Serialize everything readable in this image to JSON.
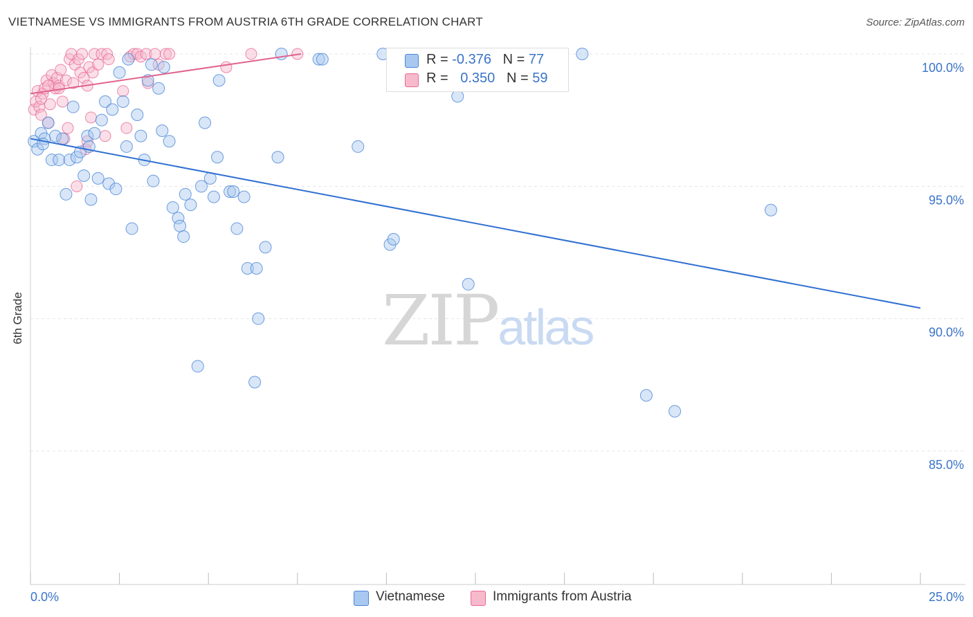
{
  "title": "VIETNAMESE VS IMMIGRANTS FROM AUSTRIA 6TH GRADE CORRELATION CHART",
  "source": "Source: ZipAtlas.com",
  "watermark": {
    "zip": "ZIP",
    "atlas": "atlas"
  },
  "colors": {
    "blue_fill": "#a9c8f0",
    "blue_stroke": "#4a86d6",
    "blue_line": "#2f6fd1",
    "pink_fill": "#f7b9cc",
    "pink_stroke": "#e86b96",
    "pink_line": "#e0628d",
    "grid": "#e4e4e4",
    "axis_text": "#3a74c8"
  },
  "legend": {
    "r_label": "R =",
    "n_label": "N =",
    "blue": {
      "r": "-0.376",
      "n": "77"
    },
    "pink": {
      "r": "0.350",
      "n": "59"
    }
  },
  "bottom_legend": {
    "blue": "Vietnamese",
    "pink": "Immigrants from Austria"
  },
  "chart_data": {
    "type": "scatter",
    "title": "VIETNAMESE VS IMMIGRANTS FROM AUSTRIA 6TH GRADE CORRELATION CHART",
    "xlabel": "",
    "ylabel": "6th Grade",
    "xlim": [
      0.0,
      25.0
    ],
    "ylim": [
      80.0,
      100.5
    ],
    "x_tick_labels": [
      "0.0%",
      "25.0%"
    ],
    "y_ticks": [
      85.0,
      90.0,
      95.0,
      100.0
    ],
    "y_tick_labels": [
      "85.0%",
      "90.0%",
      "95.0%",
      "100.0%"
    ],
    "grid": true,
    "series": [
      {
        "name": "Vietnamese",
        "r": -0.376,
        "n": 77,
        "trend": {
          "x": [
            0.0,
            25.0
          ],
          "y": [
            96.8,
            90.4
          ]
        },
        "points": [
          [
            0.1,
            96.7
          ],
          [
            0.2,
            96.4
          ],
          [
            0.3,
            97.0
          ],
          [
            0.4,
            96.8
          ],
          [
            0.5,
            97.4
          ],
          [
            0.6,
            96.0
          ],
          [
            0.7,
            96.9
          ],
          [
            0.8,
            96.0
          ],
          [
            0.9,
            96.8
          ],
          [
            1.0,
            94.7
          ],
          [
            1.1,
            96.0
          ],
          [
            1.2,
            98.0
          ],
          [
            1.3,
            96.1
          ],
          [
            1.4,
            96.3
          ],
          [
            1.5,
            95.4
          ],
          [
            1.6,
            96.9
          ],
          [
            1.7,
            94.5
          ],
          [
            1.8,
            97.0
          ],
          [
            1.9,
            95.3
          ],
          [
            2.0,
            97.5
          ],
          [
            2.1,
            98.2
          ],
          [
            2.2,
            95.1
          ],
          [
            2.3,
            97.9
          ],
          [
            2.4,
            94.9
          ],
          [
            2.5,
            99.3
          ],
          [
            2.6,
            98.2
          ],
          [
            2.7,
            96.5
          ],
          [
            2.75,
            99.8
          ],
          [
            2.85,
            93.4
          ],
          [
            3.0,
            97.7
          ],
          [
            3.1,
            96.9
          ],
          [
            3.2,
            96.0
          ],
          [
            3.3,
            99.0
          ],
          [
            3.4,
            99.6
          ],
          [
            3.45,
            95.2
          ],
          [
            3.6,
            98.7
          ],
          [
            3.7,
            97.1
          ],
          [
            3.75,
            99.5
          ],
          [
            3.9,
            96.7
          ],
          [
            4.0,
            94.2
          ],
          [
            4.15,
            93.8
          ],
          [
            4.2,
            93.5
          ],
          [
            4.3,
            93.1
          ],
          [
            4.35,
            94.7
          ],
          [
            4.5,
            94.3
          ],
          [
            4.8,
            95.0
          ],
          [
            4.9,
            97.4
          ],
          [
            5.05,
            95.3
          ],
          [
            5.15,
            94.6
          ],
          [
            5.25,
            96.1
          ],
          [
            5.3,
            99.0
          ],
          [
            5.6,
            94.8
          ],
          [
            5.7,
            94.8
          ],
          [
            5.8,
            93.4
          ],
          [
            6.0,
            94.6
          ],
          [
            6.1,
            91.9
          ],
          [
            6.35,
            91.9
          ],
          [
            6.4,
            90.0
          ],
          [
            6.6,
            92.7
          ],
          [
            6.95,
            96.1
          ],
          [
            7.05,
            100.0
          ],
          [
            8.1,
            99.8
          ],
          [
            8.2,
            99.8
          ],
          [
            9.2,
            96.5
          ],
          [
            9.9,
            100.0
          ],
          [
            10.1,
            92.8
          ],
          [
            10.2,
            93.0
          ],
          [
            12.0,
            98.4
          ],
          [
            12.3,
            91.3
          ],
          [
            15.5,
            100.0
          ],
          [
            17.3,
            87.1
          ],
          [
            18.1,
            86.5
          ],
          [
            20.8,
            94.1
          ],
          [
            4.7,
            88.2
          ],
          [
            6.3,
            87.6
          ],
          [
            0.35,
            96.6
          ],
          [
            1.65,
            96.5
          ]
        ]
      },
      {
        "name": "Immigrants from Austria",
        "r": 0.35,
        "n": 59,
        "trend": {
          "x": [
            0.0,
            7.6
          ],
          "y": [
            98.5,
            100.0
          ]
        },
        "points": [
          [
            0.1,
            97.9
          ],
          [
            0.15,
            98.2
          ],
          [
            0.2,
            98.6
          ],
          [
            0.25,
            98.0
          ],
          [
            0.3,
            97.7
          ],
          [
            0.35,
            98.5
          ],
          [
            0.4,
            98.7
          ],
          [
            0.45,
            99.0
          ],
          [
            0.5,
            97.4
          ],
          [
            0.55,
            98.1
          ],
          [
            0.6,
            99.2
          ],
          [
            0.65,
            98.9
          ],
          [
            0.7,
            98.7
          ],
          [
            0.75,
            99.1
          ],
          [
            0.8,
            98.8
          ],
          [
            0.85,
            99.4
          ],
          [
            0.9,
            98.2
          ],
          [
            0.95,
            96.8
          ],
          [
            1.0,
            99.0
          ],
          [
            1.05,
            97.2
          ],
          [
            1.1,
            99.8
          ],
          [
            1.15,
            100.0
          ],
          [
            1.2,
            98.9
          ],
          [
            1.25,
            99.6
          ],
          [
            1.3,
            95.0
          ],
          [
            1.35,
            99.8
          ],
          [
            1.4,
            99.3
          ],
          [
            1.45,
            100.0
          ],
          [
            1.5,
            99.1
          ],
          [
            1.55,
            96.4
          ],
          [
            1.6,
            98.8
          ],
          [
            1.65,
            99.5
          ],
          [
            1.7,
            97.6
          ],
          [
            1.75,
            99.3
          ],
          [
            1.8,
            100.0
          ],
          [
            1.9,
            99.6
          ],
          [
            2.0,
            100.0
          ],
          [
            2.1,
            96.9
          ],
          [
            2.15,
            100.0
          ],
          [
            2.2,
            99.8
          ],
          [
            2.6,
            98.6
          ],
          [
            2.7,
            97.2
          ],
          [
            2.8,
            99.9
          ],
          [
            2.9,
            100.0
          ],
          [
            3.0,
            100.0
          ],
          [
            3.1,
            99.9
          ],
          [
            3.25,
            100.0
          ],
          [
            3.3,
            98.9
          ],
          [
            3.5,
            100.0
          ],
          [
            3.6,
            99.6
          ],
          [
            3.8,
            100.0
          ],
          [
            3.9,
            100.0
          ],
          [
            5.5,
            99.5
          ],
          [
            6.2,
            100.0
          ],
          [
            7.5,
            100.0
          ],
          [
            0.3,
            98.3
          ],
          [
            0.5,
            98.8
          ],
          [
            0.8,
            98.7
          ],
          [
            1.6,
            96.7
          ]
        ]
      }
    ]
  }
}
